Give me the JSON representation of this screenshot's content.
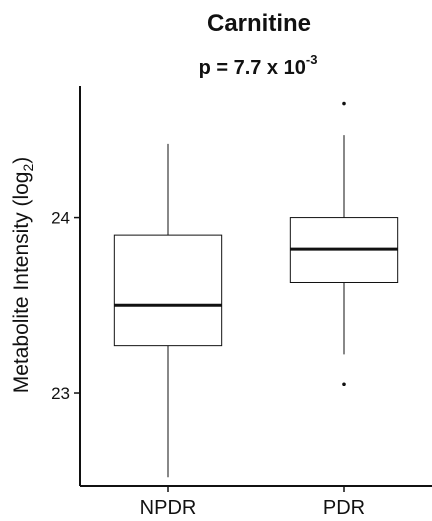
{
  "chart_data": {
    "type": "box",
    "title": "Carnitine",
    "subtitle": {
      "prefix": "p = 7.7 x 10",
      "exponent": "-3"
    },
    "ylabel": {
      "main": "Metabolite Intensity (log",
      "subscript": "2",
      "suffix": ")"
    },
    "xlabel": "",
    "categories": [
      "NPDR",
      "PDR"
    ],
    "y_ticks": [
      23,
      24
    ],
    "ylim": [
      22.47,
      24.75
    ],
    "grid": false,
    "legend": "none",
    "boxes": [
      {
        "category": "NPDR",
        "whisker_low": 22.52,
        "q1": 23.27,
        "median": 23.5,
        "q3": 23.9,
        "whisker_high": 24.42,
        "outliers": []
      },
      {
        "category": "PDR",
        "whisker_low": 23.22,
        "q1": 23.63,
        "median": 23.82,
        "q3": 24.0,
        "whisker_high": 24.47,
        "outliers": [
          23.05,
          24.65
        ]
      }
    ],
    "colors": {
      "ink": "#111111",
      "box_fill": "#ffffff",
      "axis": "#111111"
    }
  }
}
